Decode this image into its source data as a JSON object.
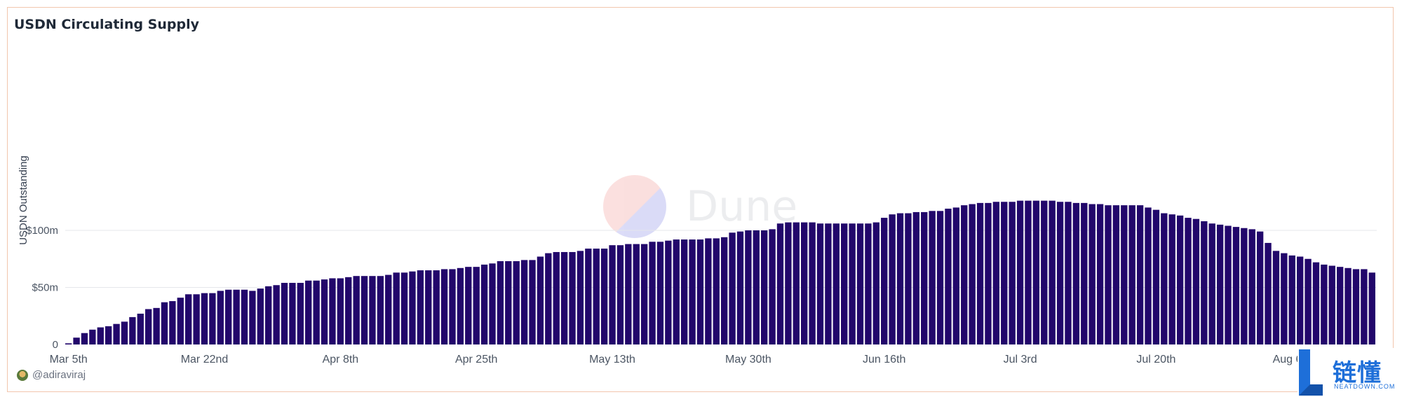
{
  "chart_data": {
    "type": "bar",
    "title": "USDN Circulating Supply",
    "ylabel": "USDN Outstanding",
    "xlabel": "",
    "ylim": [
      0,
      500
    ],
    "unit": "$m",
    "yticks": [
      {
        "value": 0,
        "label": "0"
      },
      {
        "value": 50,
        "label": "$50m"
      },
      {
        "value": 100,
        "label": "$100m"
      }
    ],
    "xticks": [
      "Mar 5th",
      "Mar 22nd",
      "Apr 8th",
      "Apr 25th",
      "May 13th",
      "May 30th",
      "Jun 16th",
      "Jul 3rd",
      "Jul 20th",
      "Aug 6th"
    ],
    "bar_color": "#22076b",
    "grid": true,
    "legend": "none",
    "values": [
      1,
      6,
      10,
      13,
      15,
      16,
      18,
      20,
      24,
      27,
      31,
      32,
      37,
      38,
      41,
      44,
      44,
      45,
      45,
      47,
      48,
      48,
      48,
      47,
      49,
      51,
      52,
      54,
      54,
      54,
      56,
      56,
      57,
      58,
      58,
      59,
      60,
      60,
      60,
      60,
      61,
      63,
      63,
      64,
      65,
      65,
      65,
      66,
      66,
      67,
      68,
      68,
      70,
      71,
      73,
      73,
      73,
      74,
      74,
      77,
      80,
      81,
      81,
      81,
      82,
      84,
      84,
      84,
      87,
      87,
      88,
      88,
      88,
      90,
      90,
      91,
      92,
      92,
      92,
      92,
      93,
      93,
      94,
      98,
      99,
      100,
      100,
      100,
      101,
      106,
      107,
      107,
      107,
      107,
      106,
      106,
      106,
      106,
      106,
      106,
      106,
      107,
      111,
      114,
      115,
      115,
      116,
      116,
      117,
      117,
      119,
      120,
      122,
      123,
      124,
      124,
      125,
      125,
      125,
      126,
      126,
      126,
      126,
      126,
      125,
      125,
      124,
      124,
      123,
      123,
      122,
      122,
      122,
      122,
      122,
      120,
      118,
      115,
      114,
      113,
      111,
      110,
      108,
      106,
      105,
      104,
      103,
      102,
      101,
      99,
      89,
      82,
      80,
      78,
      77,
      75,
      72,
      70,
      69,
      68,
      67,
      66,
      66,
      63
    ]
  },
  "footer": {
    "author": "@adiraviraj"
  },
  "watermark": {
    "text": "Dune"
  },
  "logo": {
    "cn": "链懂",
    "en": "NEATDOWN.COM"
  }
}
